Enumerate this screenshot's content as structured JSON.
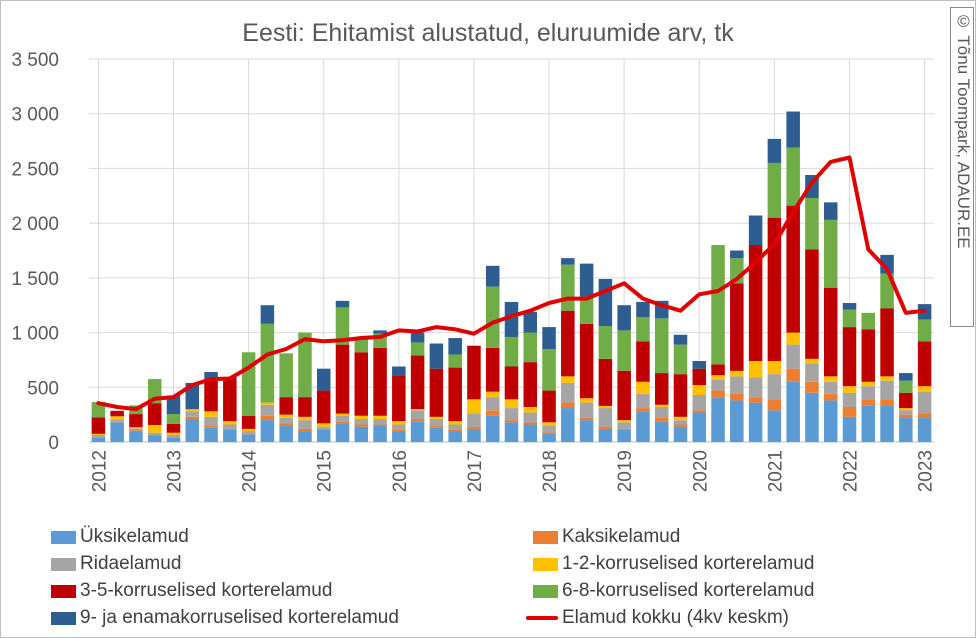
{
  "credit": "© Tõnu Toompark, ADAUR.EE",
  "chart_data": {
    "type": "bar",
    "stacked": true,
    "title": "Eesti: Ehitamist alustatud, eluruumide arv, tk",
    "xlabel": "",
    "ylabel": "",
    "ylim": [
      0,
      3500
    ],
    "yticks": [
      0,
      500,
      1000,
      1500,
      2000,
      2500,
      3000,
      3500
    ],
    "ytick_labels": [
      "0",
      "500",
      "1 000",
      "1 500",
      "2 000",
      "2 500",
      "3 000",
      "3 500"
    ],
    "xtick_labels": [
      "2012",
      "2013",
      "2014",
      "2015",
      "2016",
      "2017",
      "2018",
      "2019",
      "2020",
      "2021",
      "2022",
      "2023"
    ],
    "grid": true,
    "legend_position": "bottom",
    "categories": [
      "2012 Q1",
      "2012 Q2",
      "2012 Q3",
      "2012 Q4",
      "2013 Q1",
      "2013 Q2",
      "2013 Q3",
      "2013 Q4",
      "2014 Q1",
      "2014 Q2",
      "2014 Q3",
      "2014 Q4",
      "2015 Q1",
      "2015 Q2",
      "2015 Q3",
      "2015 Q4",
      "2016 Q1",
      "2016 Q2",
      "2016 Q3",
      "2016 Q4",
      "2017 Q1",
      "2017 Q2",
      "2017 Q3",
      "2017 Q4",
      "2018 Q1",
      "2018 Q2",
      "2018 Q3",
      "2018 Q4",
      "2019 Q1",
      "2019 Q2",
      "2019 Q3",
      "2019 Q4",
      "2020 Q1",
      "2020 Q2",
      "2020 Q3",
      "2020 Q4",
      "2021 Q1",
      "2021 Q2",
      "2021 Q3",
      "2021 Q4",
      "2022 Q1",
      "2022 Q2",
      "2022 Q3",
      "2022 Q4",
      "2023 Q1"
    ],
    "series": [
      {
        "name": "Üksikelamud",
        "color": "#5b9bd5",
        "values": [
          40,
          180,
          100,
          60,
          40,
          210,
          130,
          110,
          70,
          200,
          150,
          100,
          110,
          170,
          140,
          150,
          100,
          190,
          130,
          100,
          120,
          240,
          180,
          160,
          80,
          310,
          200,
          120,
          110,
          280,
          190,
          140,
          270,
          410,
          380,
          360,
          290,
          550,
          450,
          380,
          230,
          330,
          330,
          220,
          220
        ]
      },
      {
        "name": "Kaksikelamud",
        "color": "#ed7d31",
        "values": [
          5,
          5,
          5,
          5,
          5,
          20,
          20,
          10,
          10,
          40,
          20,
          20,
          10,
          20,
          20,
          10,
          10,
          20,
          20,
          10,
          20,
          50,
          20,
          20,
          10,
          50,
          20,
          20,
          10,
          30,
          30,
          20,
          20,
          60,
          60,
          50,
          100,
          120,
          100,
          60,
          90,
          60,
          60,
          30,
          40
        ]
      },
      {
        "name": "Ridaelamud",
        "color": "#a5a5a5",
        "values": [
          20,
          20,
          20,
          20,
          20,
          50,
          80,
          40,
          20,
          100,
          50,
          80,
          20,
          50,
          50,
          50,
          50,
          80,
          60,
          50,
          120,
          120,
          110,
          90,
          60,
          180,
          140,
          170,
          60,
          130,
          100,
          40,
          140,
          100,
          160,
          180,
          230,
          220,
          170,
          110,
          130,
          120,
          170,
          40,
          200
        ]
      },
      {
        "name": "1-2-korruselised korterelamud",
        "color": "#ffc000",
        "values": [
          10,
          30,
          10,
          70,
          20,
          20,
          50,
          30,
          20,
          20,
          30,
          30,
          30,
          20,
          30,
          30,
          30,
          10,
          20,
          30,
          130,
          50,
          80,
          50,
          30,
          60,
          40,
          20,
          20,
          110,
          20,
          30,
          90,
          40,
          50,
          150,
          120,
          110,
          40,
          50,
          60,
          40,
          40,
          20,
          50
        ]
      },
      {
        "name": "3-5-korruselised korterelamud",
        "color": "#c00000",
        "values": [
          150,
          50,
          120,
          200,
          80,
          0,
          300,
          400,
          120,
          0,
          160,
          180,
          300,
          630,
          580,
          620,
          420,
          490,
          440,
          490,
          490,
          400,
          300,
          410,
          290,
          600,
          680,
          430,
          450,
          370,
          290,
          390,
          150,
          100,
          800,
          1060,
          1310,
          1160,
          1000,
          810,
          540,
          480,
          620,
          140,
          410
        ]
      },
      {
        "name": "6-8-korruselised korterelamud",
        "color": "#70ad47",
        "values": [
          140,
          0,
          80,
          220,
          90,
          0,
          0,
          0,
          580,
          720,
          400,
          590,
          0,
          340,
          140,
          130,
          0,
          120,
          0,
          120,
          0,
          560,
          270,
          270,
          380,
          420,
          250,
          300,
          370,
          220,
          500,
          270,
          0,
          1090,
          230,
          0,
          500,
          530,
          470,
          620,
          160,
          150,
          320,
          110,
          200
        ]
      },
      {
        "name": "9- ja enamakorruselised korterelamud",
        "color": "#2e5d92",
        "values": [
          0,
          0,
          0,
          0,
          170,
          240,
          60,
          0,
          0,
          170,
          0,
          0,
          200,
          60,
          0,
          30,
          80,
          90,
          230,
          150,
          0,
          190,
          320,
          190,
          200,
          60,
          300,
          430,
          230,
          140,
          160,
          90,
          70,
          0,
          70,
          270,
          220,
          330,
          210,
          160,
          60,
          0,
          170,
          70,
          140
        ]
      },
      {
        "name": "Elamud kokku (4kv keskm)",
        "color": "#e00000",
        "type": "line",
        "values": [
          355,
          320,
          300,
          395,
          410,
          520,
          575,
          580,
          680,
          800,
          850,
          940,
          920,
          930,
          950,
          960,
          1020,
          1010,
          1050,
          1030,
          990,
          1090,
          1150,
          1200,
          1270,
          1310,
          1310,
          1380,
          1450,
          1310,
          1250,
          1200,
          1350,
          1380,
          1490,
          1640,
          1810,
          2100,
          2370,
          2560,
          2600,
          1760,
          1580,
          1180,
          1200
        ]
      }
    ]
  }
}
